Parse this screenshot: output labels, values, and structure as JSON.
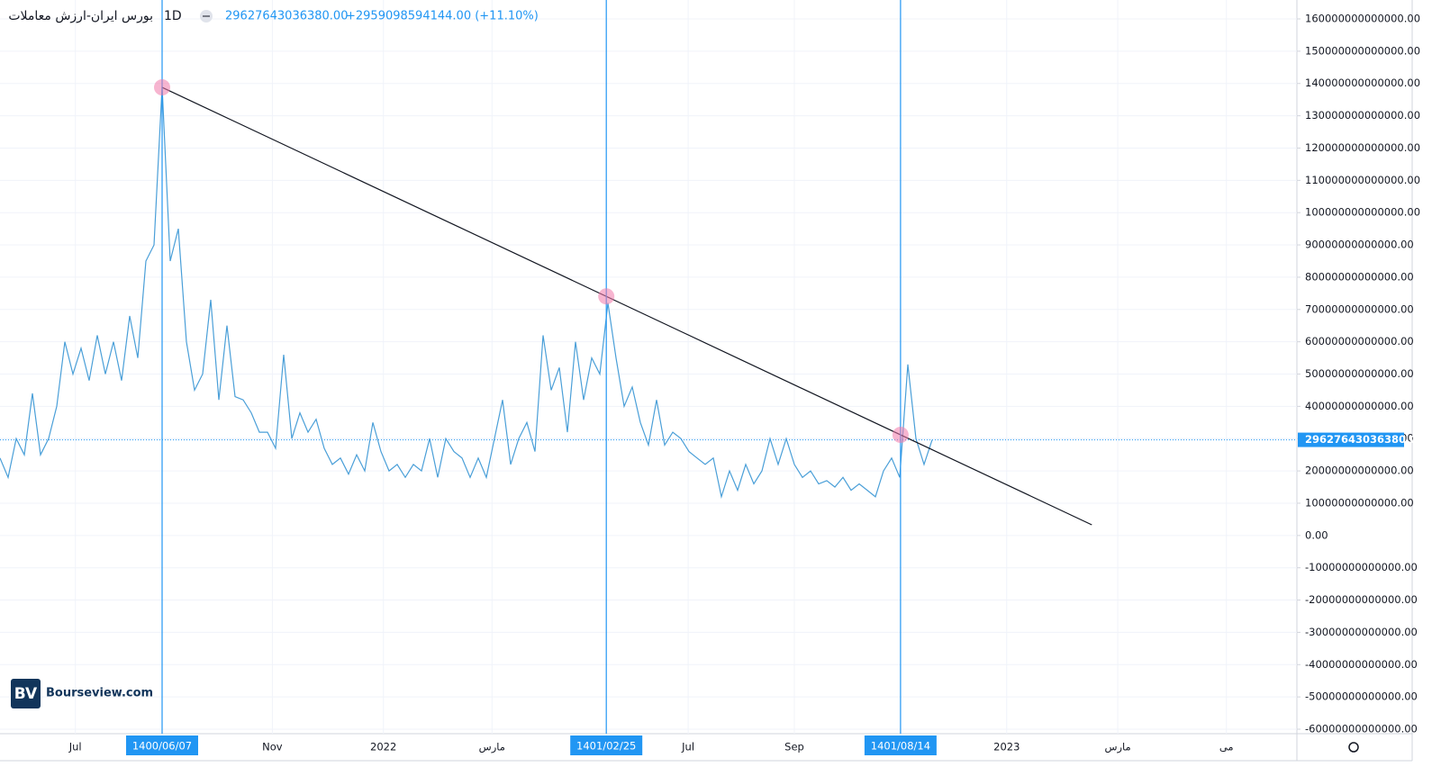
{
  "chart_data": {
    "type": "line",
    "symbol": "بورس ایران-ارزش معاملات",
    "interval": "1D",
    "last": {
      "value": 29627643036380,
      "label": "29627643036380.00"
    },
    "change": "+2959098594144.00 (+11.10%)",
    "watermark": {
      "logo": "BV",
      "text": "Bourseview.com"
    },
    "color": "#4a9fd8",
    "values": [
      24000000000000.0,
      18000000000000.0,
      30000000000000.0,
      25000000000000.0,
      44000000000000.0,
      25000000000000.0,
      30000000000000.0,
      40000000000000.0,
      60000000000000.0,
      50000000000000.0,
      58000000000000.0,
      48000000000000.0,
      62000000000000.0,
      50000000000000.0,
      60000000000000.0,
      48000000000000.0,
      68000000000000.0,
      55000000000000.0,
      85000000000000.0,
      90000000000000.0,
      139000000000000.0,
      85000000000000.0,
      95000000000000.0,
      60000000000000.0,
      45000000000000.0,
      50000000000000.0,
      73000000000000.0,
      42000000000000.0,
      65000000000000.0,
      43000000000000.0,
      42000000000000.0,
      38000000000000.0,
      32000000000000.0,
      32000000000000.0,
      27000000000000.0,
      56000000000000.0,
      30000000000000.0,
      38000000000000.0,
      32000000000000.0,
      36000000000000.0,
      27000000000000.0,
      22000000000000.0,
      24000000000000.0,
      19000000000000.0,
      25000000000000.0,
      20000000000000.0,
      35000000000000.0,
      26000000000000.0,
      20000000000000.0,
      22000000000000.0,
      18000000000000.0,
      22000000000000.0,
      20000000000000.0,
      30000000000000.0,
      18000000000000.0,
      30000000000000.0,
      26000000000000.0,
      24000000000000.0,
      18000000000000.0,
      24000000000000.0,
      18000000000000.0,
      30000000000000.0,
      42000000000000.0,
      22000000000000.0,
      30000000000000.0,
      35000000000000.0,
      26000000000000.0,
      62000000000000.0,
      45000000000000.0,
      52000000000000.0,
      32000000000000.0,
      60000000000000.0,
      42000000000000.0,
      55000000000000.0,
      50000000000000.0,
      72000000000000.0,
      55000000000000.0,
      40000000000000.0,
      46000000000000.0,
      35000000000000.0,
      28000000000000.0,
      42000000000000.0,
      28000000000000.0,
      32000000000000.0,
      30000000000000.0,
      26000000000000.0,
      24000000000000.0,
      22000000000000.0,
      24000000000000.0,
      12000000000000.0,
      20000000000000.0,
      14000000000000.0,
      22000000000000.0,
      16000000000000.0,
      20000000000000.0,
      30000000000000.0,
      22000000000000.0,
      30000000000000.0,
      22000000000000.0,
      18000000000000.0,
      20000000000000.0,
      16000000000000.0,
      17000000000000.0,
      15000000000000.0,
      18000000000000.0,
      14000000000000.0,
      16000000000000.0,
      14000000000000.0,
      12000000000000.0,
      20000000000000.0,
      24000000000000.0,
      18000000000000.0,
      53000000000000.0,
      30000000000000.0,
      22000000000000.0,
      29627643036380
    ],
    "xlim": [
      0,
      160
    ],
    "xticks": [
      {
        "value": 9.3,
        "label": "Jul"
      },
      {
        "value": 33.6,
        "label": "Nov"
      },
      {
        "value": 47.3,
        "label": "2022"
      },
      {
        "value": 60.7,
        "label": "مارس"
      },
      {
        "value": 84.9,
        "label": "Jul"
      },
      {
        "value": 98,
        "label": "Sep"
      },
      {
        "value": 124.2,
        "label": "2023"
      },
      {
        "value": 137.9,
        "label": "مارس"
      },
      {
        "value": 151.3,
        "label": "می"
      }
    ],
    "markers": [
      {
        "value": 20,
        "label": "1400/06/07"
      },
      {
        "value": 74.8,
        "label": "1401/02/25"
      },
      {
        "value": 111.1,
        "label": "1401/08/14"
      }
    ],
    "trendline": {
      "x": [
        20,
        134.7
      ],
      "y": [
        138800000000000,
        3300000000000
      ]
    },
    "ylim": [
      165860000000000,
      -61390000000000
    ],
    "yticks": [
      {
        "value": 160000000000000,
        "label": "160000000000000.00"
      },
      {
        "value": 150000000000000,
        "label": "150000000000000.00"
      },
      {
        "value": 140000000000000,
        "label": "140000000000000.00"
      },
      {
        "value": 130000000000000,
        "label": "130000000000000.00"
      },
      {
        "value": 120000000000000,
        "label": "120000000000000.00"
      },
      {
        "value": 110000000000000,
        "label": "110000000000000.00"
      },
      {
        "value": 100000000000000,
        "label": "100000000000000.00"
      },
      {
        "value": 90000000000000,
        "label": "90000000000000.00"
      },
      {
        "value": 80000000000000,
        "label": "80000000000000.00"
      },
      {
        "value": 70000000000000,
        "label": "70000000000000.00"
      },
      {
        "value": 60000000000000,
        "label": "60000000000000.00"
      },
      {
        "value": 50000000000000,
        "label": "50000000000000.00"
      },
      {
        "value": 40000000000000,
        "label": "40000000000000.00"
      },
      {
        "value": 30000000000000,
        "label": "30000000000000.00"
      },
      {
        "value": 20000000000000,
        "label": "20000000000000.00"
      },
      {
        "value": 10000000000000,
        "label": "10000000000000.00"
      },
      {
        "value": 0,
        "label": "0.00"
      },
      {
        "value": -10000000000000,
        "label": "-10000000000000.00"
      },
      {
        "value": -20000000000000,
        "label": "-20000000000000.00"
      },
      {
        "value": -30000000000000,
        "label": "-30000000000000.00"
      },
      {
        "value": -40000000000000,
        "label": "-40000000000000.00"
      },
      {
        "value": -50000000000000,
        "label": "-50000000000000.00"
      },
      {
        "value": -60000000000000,
        "label": "-60000000000000.00"
      }
    ],
    "grid": true
  }
}
